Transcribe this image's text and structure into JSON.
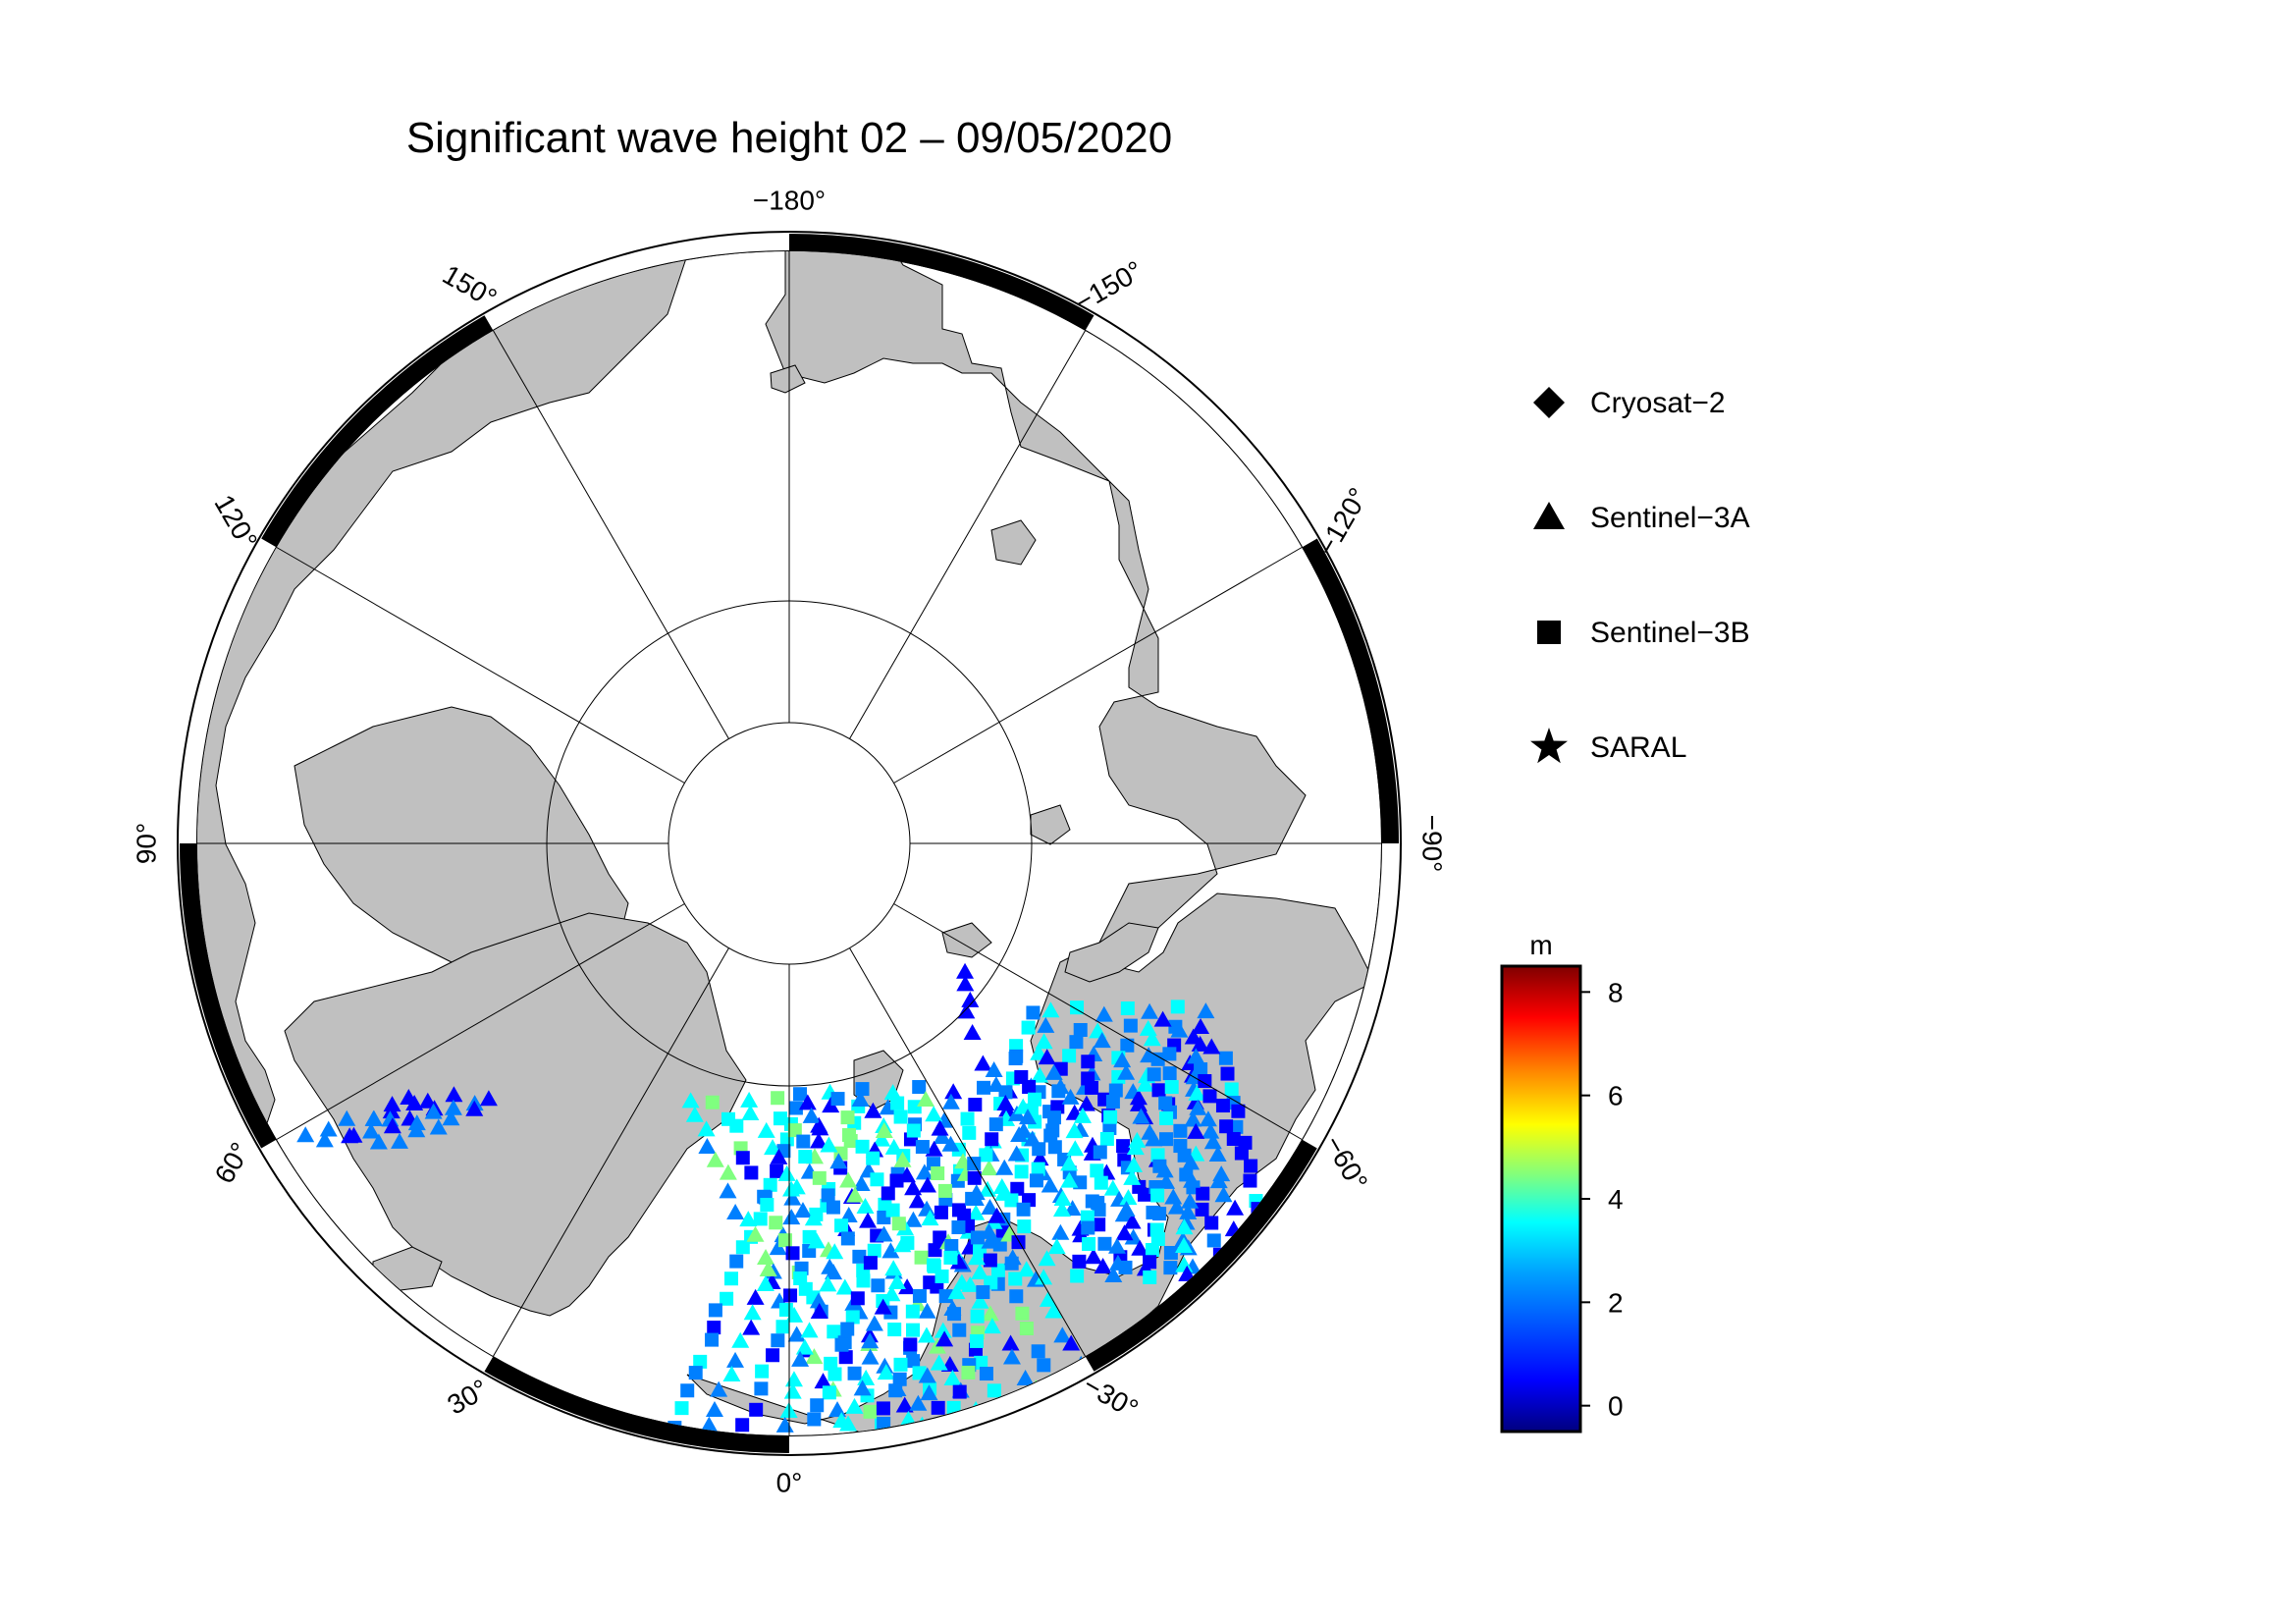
{
  "title": "Significant wave height 02 – 09/05/2020",
  "longitude_labels": [
    {
      "lon": -180,
      "text": "−180°"
    },
    {
      "lon": 150,
      "text": "150°"
    },
    {
      "lon": 120,
      "text": "120°"
    },
    {
      "lon": 90,
      "text": "90°"
    },
    {
      "lon": 60,
      "text": "60°"
    },
    {
      "lon": 30,
      "text": "30°"
    },
    {
      "lon": 0,
      "text": "0°"
    },
    {
      "lon": -30,
      "text": "−30°"
    },
    {
      "lon": -60,
      "text": "−60°"
    },
    {
      "lon": -90,
      "text": "−90°"
    },
    {
      "lon": -120,
      "text": "−120°"
    },
    {
      "lon": -150,
      "text": "−150°"
    }
  ],
  "legend": {
    "items": [
      {
        "symbol": "diamond",
        "label": "Cryosat−2"
      },
      {
        "symbol": "triangle",
        "label": "Sentinel−3A"
      },
      {
        "symbol": "square",
        "label": "Sentinel−3B"
      },
      {
        "symbol": "star",
        "label": "SARAL"
      }
    ]
  },
  "colorbar": {
    "unit": "m",
    "min": -0.5,
    "max": 8.5,
    "ticks": [
      {
        "value": 0,
        "label": "0"
      },
      {
        "value": 2,
        "label": "2"
      },
      {
        "value": 4,
        "label": "4"
      },
      {
        "value": 6,
        "label": "6"
      },
      {
        "value": 8,
        "label": "8"
      }
    ],
    "colors": [
      "#00007f",
      "#0000ff",
      "#007fff",
      "#00ffff",
      "#7fff7f",
      "#ffff00",
      "#ff7f00",
      "#ff0000",
      "#7f0000"
    ]
  },
  "colors": {
    "land": "#c0c0c0",
    "ocean": "#ffffff",
    "frame": "#000000"
  }
}
